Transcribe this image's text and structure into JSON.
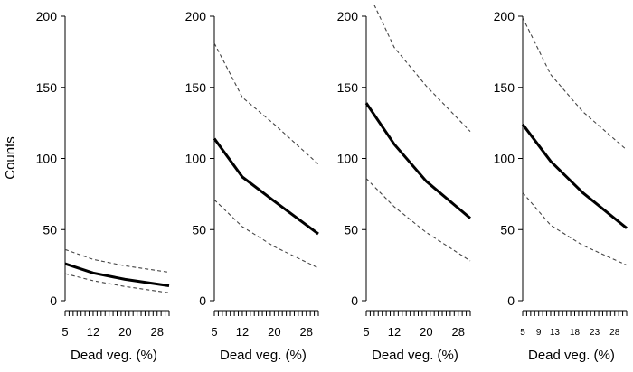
{
  "ylabel": "Counts",
  "chart_data": [
    {
      "type": "line",
      "xlabel": "Dead veg. (%)",
      "ylabel": "Counts",
      "ylim": [
        0,
        200
      ],
      "yticks": [
        0,
        50,
        100,
        150,
        200
      ],
      "xlim": [
        5,
        31
      ],
      "xtick_labels": [
        "5",
        "12",
        "20",
        "28"
      ],
      "xtick_values": [
        5,
        12,
        20,
        28
      ],
      "minor_ticks": true,
      "grid": false,
      "series": [
        {
          "style": "solid",
          "x": [
            5,
            12,
            20,
            31
          ],
          "y": [
            26,
            19.5,
            15,
            10.5
          ]
        },
        {
          "style": "dashed",
          "x": [
            5,
            12,
            20,
            31
          ],
          "y": [
            36,
            29,
            24.5,
            20
          ]
        },
        {
          "style": "dashed",
          "x": [
            5,
            12,
            20,
            31
          ],
          "y": [
            19,
            14,
            10,
            5.5
          ]
        }
      ]
    },
    {
      "type": "line",
      "xlabel": "Dead veg. (%)",
      "ylim": [
        0,
        200
      ],
      "yticks": [
        0,
        50,
        100,
        150,
        200
      ],
      "xlim": [
        5,
        31
      ],
      "xtick_labels": [
        "5",
        "12",
        "20",
        "28"
      ],
      "xtick_values": [
        5,
        12,
        20,
        28
      ],
      "minor_ticks": true,
      "grid": false,
      "series": [
        {
          "style": "solid",
          "x": [
            5,
            12,
            20,
            31
          ],
          "y": [
            114,
            87,
            70,
            47
          ]
        },
        {
          "style": "dashed",
          "x": [
            5,
            12,
            20,
            31
          ],
          "y": [
            181,
            143,
            124,
            96
          ]
        },
        {
          "style": "dashed",
          "x": [
            5,
            12,
            20,
            31
          ],
          "y": [
            71,
            52,
            38,
            23
          ]
        }
      ]
    },
    {
      "type": "line",
      "xlabel": "Dead veg. (%)",
      "ylim": [
        0,
        200
      ],
      "yticks": [
        0,
        50,
        100,
        150,
        200
      ],
      "xlim": [
        5,
        31
      ],
      "xtick_labels": [
        "5",
        "12",
        "20",
        "28"
      ],
      "xtick_values": [
        5,
        12,
        20,
        28
      ],
      "minor_ticks": true,
      "grid": false,
      "series": [
        {
          "style": "solid",
          "x": [
            5,
            12,
            20,
            31
          ],
          "y": [
            139,
            110,
            84,
            58
          ]
        },
        {
          "style": "dashed",
          "x": [
            7,
            12,
            20,
            31
          ],
          "y": [
            208,
            178,
            151,
            119
          ]
        },
        {
          "style": "dashed",
          "x": [
            5,
            12,
            20,
            31
          ],
          "y": [
            86,
            66,
            48,
            28
          ]
        }
      ]
    },
    {
      "type": "line",
      "xlabel": "Dead veg. (%)",
      "ylim": [
        0,
        200
      ],
      "yticks": [
        0,
        50,
        100,
        150,
        200
      ],
      "xlim": [
        5,
        31
      ],
      "xtick_labels": [
        "5",
        "9",
        "13",
        "18",
        "23",
        "28"
      ],
      "xtick_values": [
        5,
        9,
        13,
        18,
        23,
        28
      ],
      "minor_ticks": true,
      "grid": false,
      "series": [
        {
          "style": "solid",
          "x": [
            5,
            12,
            20,
            31
          ],
          "y": [
            124,
            98,
            76,
            51
          ]
        },
        {
          "style": "dashed",
          "x": [
            5,
            12,
            20,
            31
          ],
          "y": [
            199,
            159,
            133,
            106
          ]
        },
        {
          "style": "dashed",
          "x": [
            5,
            12,
            20,
            31
          ],
          "y": [
            76,
            53,
            39,
            25
          ]
        }
      ]
    }
  ]
}
